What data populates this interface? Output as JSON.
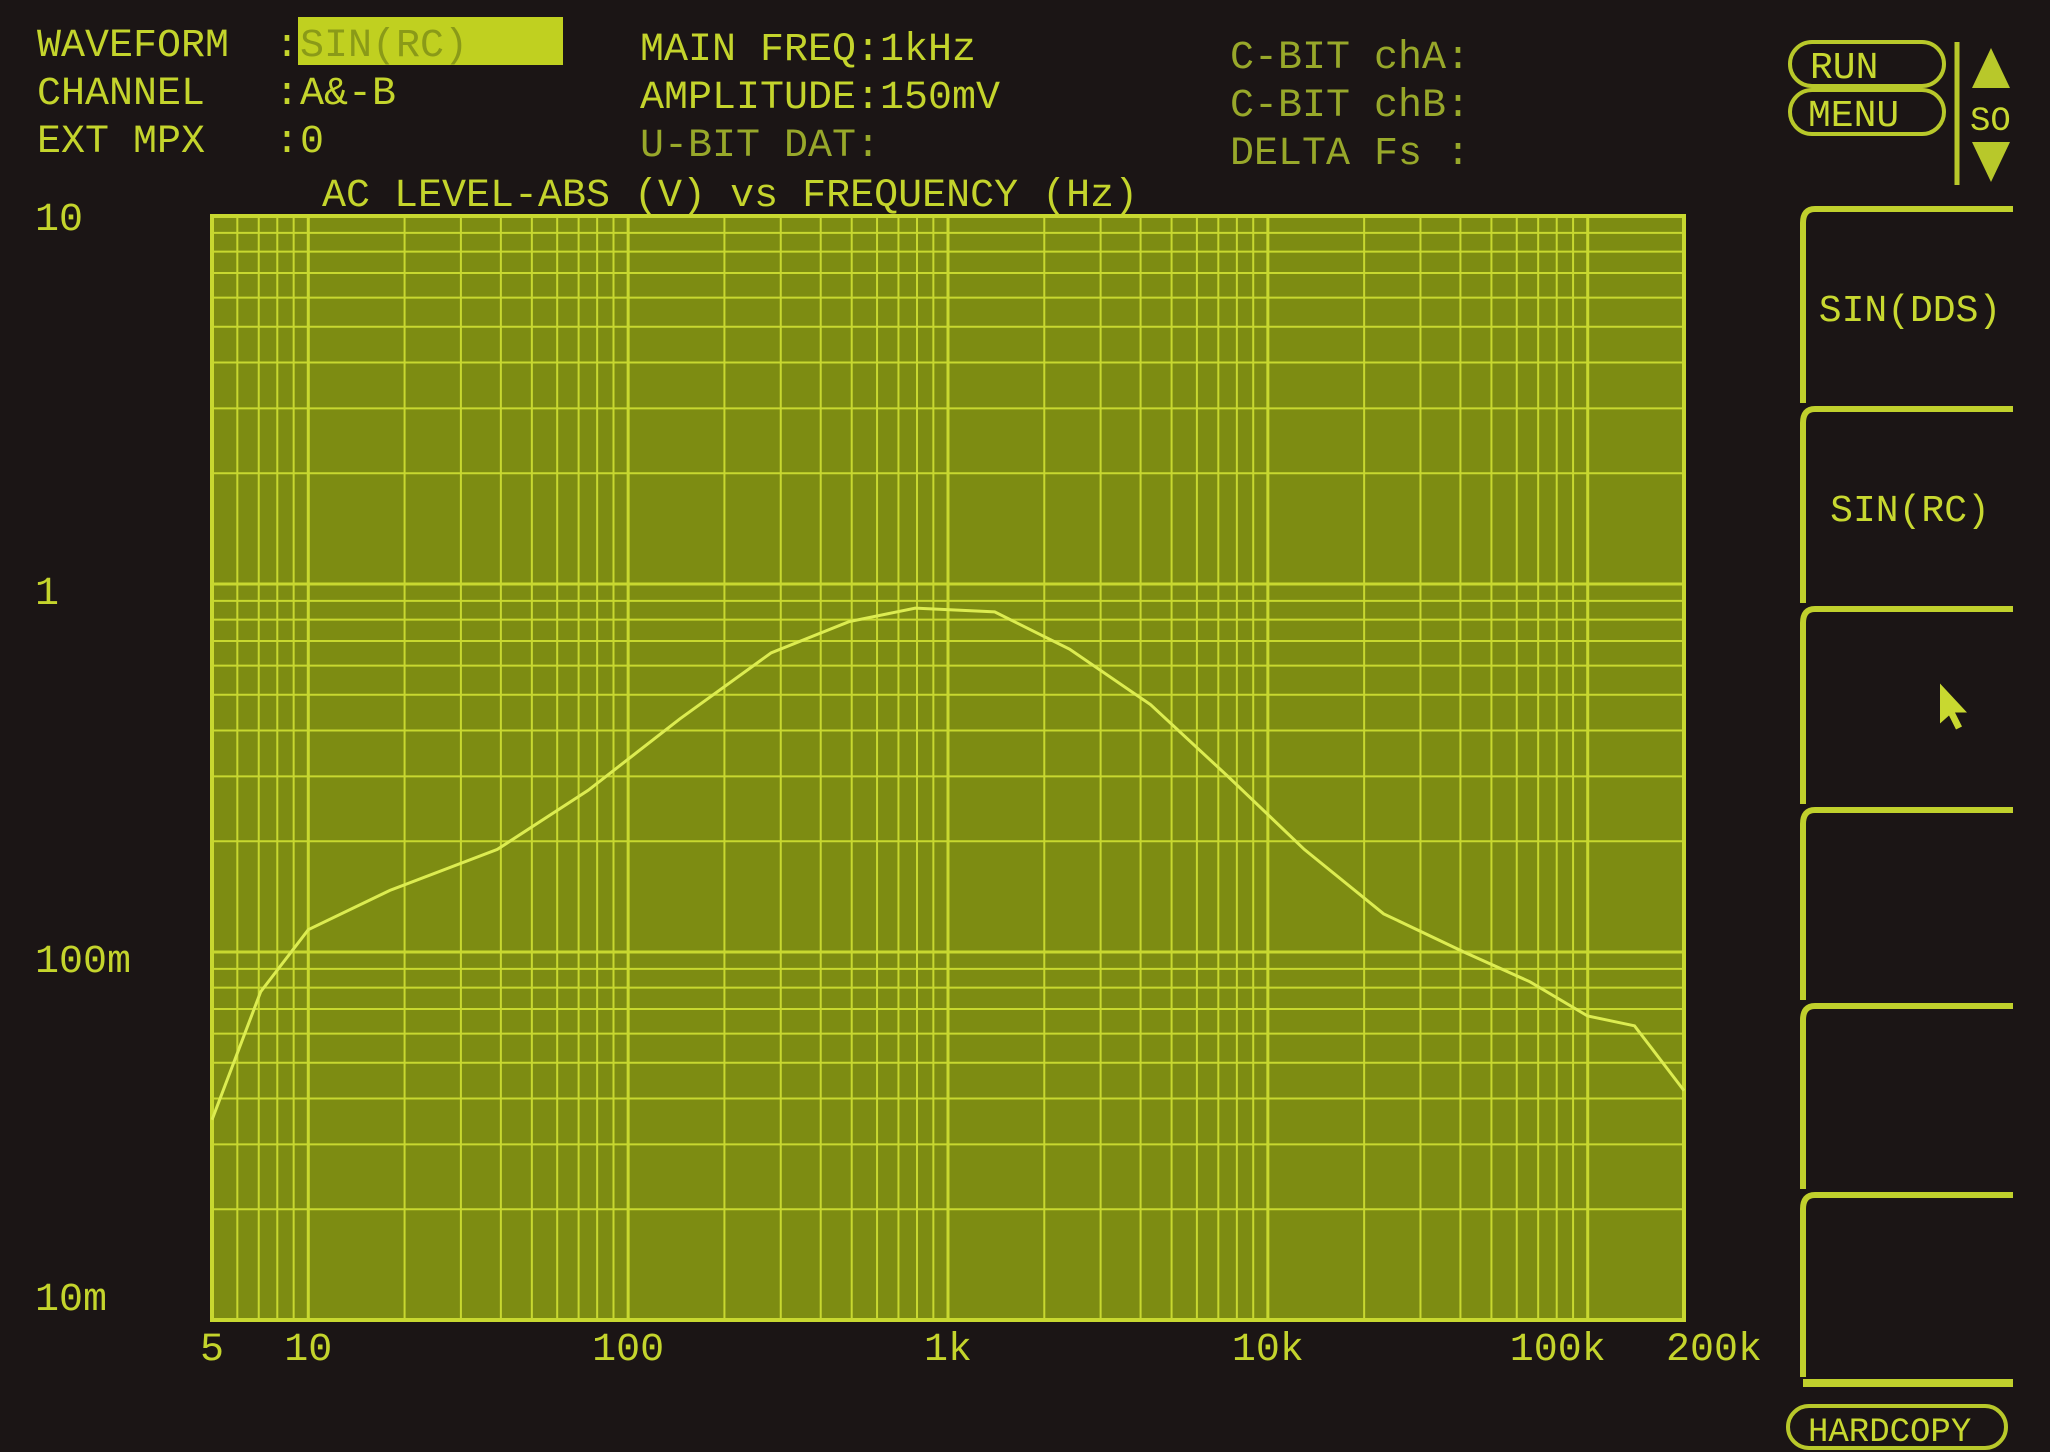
{
  "header": {
    "waveform_label": "WAVEFORM",
    "waveform_value": "SIN(RC)",
    "channel_label": "CHANNEL",
    "channel_value": "A&-B",
    "ext_mpx_label": "EXT MPX",
    "ext_mpx_value": "0",
    "main_freq": "MAIN FREQ:1kHz",
    "amplitude": "AMPLITUDE:150mV",
    "u_bit": "U-BIT DAT:",
    "c_bit_a": "C-BIT chA:",
    "c_bit_b": "C-BIT chB:",
    "delta_fs": "DELTA Fs :"
  },
  "controls": {
    "run": "RUN",
    "menu": "MENU",
    "scroll_label": "SO",
    "hardcopy": "HARDCOPY"
  },
  "softkeys": [
    {
      "label": "SIN(DDS)"
    },
    {
      "label": "SIN(RC)"
    },
    {
      "label": "",
      "icon": "cursor-arrow-icon"
    },
    {
      "label": ""
    },
    {
      "label": ""
    },
    {
      "label": ""
    }
  ],
  "colors": {
    "background": "#1b1515",
    "plot_bg": "#7d8c12",
    "grid": "#c8d830",
    "trace": "#dcec50",
    "highlight": "#c0d020"
  },
  "chart_data": {
    "type": "line",
    "title": "AC LEVEL-ABS (V) vs FREQUENCY (Hz)",
    "x_scale": "log",
    "y_scale": "log",
    "xlim": [
      5,
      200000
    ],
    "ylim": [
      0.01,
      10
    ],
    "grid": true,
    "x_tick_labels": [
      {
        "value": 5,
        "label": "5"
      },
      {
        "value": 10,
        "label": "10"
      },
      {
        "value": 100,
        "label": "100"
      },
      {
        "value": 1000,
        "label": "1k"
      },
      {
        "value": 10000,
        "label": "10k"
      },
      {
        "value": 100000,
        "label": "100k"
      },
      {
        "value": 200000,
        "label": "200k"
      }
    ],
    "y_tick_labels": [
      {
        "value": 10,
        "label": "10"
      },
      {
        "value": 1,
        "label": "1"
      },
      {
        "value": 0.1,
        "label": "100m"
      },
      {
        "value": 0.01,
        "label": "10m"
      }
    ],
    "series": [
      {
        "x": [
          5,
          7.1,
          10,
          18,
          39,
          75,
          145,
          280,
          490,
          790,
          1400,
          2400,
          4300,
          7500,
          13000,
          23000,
          41000,
          66000,
          100000,
          140000,
          200000
        ],
        "y": [
          0.035,
          0.078,
          0.115,
          0.147,
          0.19,
          0.275,
          0.43,
          0.65,
          0.79,
          0.86,
          0.84,
          0.665,
          0.47,
          0.3,
          0.19,
          0.127,
          0.1,
          0.083,
          0.067,
          0.063,
          0.042
        ]
      }
    ]
  }
}
